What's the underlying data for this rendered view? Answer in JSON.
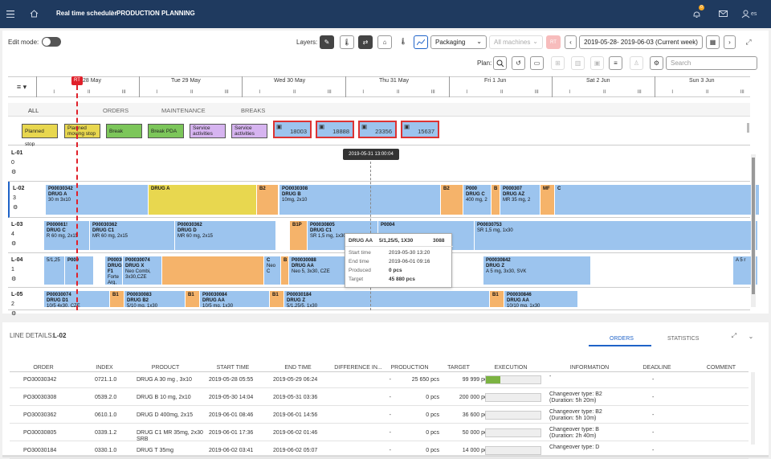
{
  "header": {
    "title": "Real time scheduler",
    "separator": "/",
    "section": "PRODUCTION PLANNING",
    "notif_count": "0",
    "lang": "es"
  },
  "toolbar": {
    "edit_mode": "Edit mode:",
    "layers": "Layers:",
    "layer_select": "Packaging",
    "machine_select": "All machines",
    "rt": "RT",
    "date_range": "2019-05-28- 2019-06-03 (Current week)",
    "plan": "Plan:",
    "search_placeholder": "Search"
  },
  "timeline": {
    "days": [
      "28 May",
      "Tue 29 May",
      "Wed 30 May",
      "Thu 31 May",
      "Fri 1 Jun",
      "Sat 2 Jun",
      "Sun 3 Jun"
    ],
    "tick_labels": [
      "I",
      "II",
      "III"
    ],
    "rt_marker": "RT"
  },
  "tabs": [
    "ALL",
    "ORDERS",
    "MAINTENANCE",
    "BREAKS"
  ],
  "legend": {
    "items": [
      {
        "label": "Planned stop",
        "color": "#e8d74f"
      },
      {
        "label": "Planned moving stop",
        "color": "#e8d74f"
      },
      {
        "label": "Break",
        "color": "#7cc65a"
      },
      {
        "label": "Break PDA",
        "color": "#7cc65a"
      },
      {
        "label": "Service activities",
        "color": "#d6b4f0"
      },
      {
        "label": "Service activities",
        "color": "#d6b4f0"
      }
    ],
    "numbered": [
      "18003",
      "18888",
      "23356",
      "15637"
    ]
  },
  "cursor_time": "2019-05-31 13:00:04",
  "lines": [
    {
      "id": "L-01",
      "count": "0"
    },
    {
      "id": "L-02",
      "count": "3",
      "bars": [
        {
          "t": "b",
          "l": "P00030342",
          "s": "DRUG A",
          "d": "30 m    3x10"
        },
        {
          "t": "y",
          "l": "DRUG A",
          "s": "",
          "d": ""
        },
        {
          "t": "o",
          "l": "B2",
          "s": "",
          "d": ""
        },
        {
          "t": "b",
          "l": "PO0030308",
          "s": "DRUG B",
          "d": "10mg, 2x10"
        },
        {
          "t": "o",
          "l": "B2",
          "s": "",
          "d": ""
        },
        {
          "t": "b",
          "l": "P000",
          "s": "DRUG C",
          "d": "400 mg, 2"
        },
        {
          "t": "o",
          "l": "B",
          "s": "",
          "d": ""
        },
        {
          "t": "b",
          "l": "P000307",
          "s": "DRUG AZ",
          "d": "MR 35 mg, 2"
        },
        {
          "t": "o",
          "l": "MF",
          "s": "",
          "d": ""
        },
        {
          "t": "b",
          "l": "C",
          "s": "",
          "d": ""
        }
      ]
    },
    {
      "id": "L-03",
      "count": "4",
      "bars": [
        {
          "t": "b",
          "l": "P000061!",
          "s": "DRUG C",
          "d": "R 60 mg, 2x15"
        },
        {
          "t": "b",
          "l": "P00030362",
          "s": "DRUG C1",
          "d": "MR 60 mg, 2x15"
        },
        {
          "t": "b",
          "l": "P00030362",
          "s": "DRUG D",
          "d": "MR 60 mg, 2x15"
        },
        {
          "t": "o",
          "l": "B1P",
          "s": "",
          "d": ""
        },
        {
          "t": "b",
          "l": "P00030805",
          "s": "DRUG C1",
          "d": "SR 1,5 mg, 1x30, LD"
        },
        {
          "t": "b",
          "l": "P0004",
          "s": "",
          "d": ""
        },
        {
          "t": "b",
          "l": "P00030753",
          "s": "",
          "d": "SR 1,5 mg, 1x30"
        }
      ]
    },
    {
      "id": "L-04",
      "count": "1",
      "bars": [
        {
          "t": "b",
          "l": "",
          "s": "",
          "d": "5/1,25"
        },
        {
          "t": "b",
          "l": "P000",
          "s": "",
          "d": ""
        },
        {
          "t": "b",
          "l": "P00030831",
          "s": "DRUG F1",
          "d": "Forte Arg, 3x30"
        },
        {
          "t": "b",
          "l": "P00030074",
          "s": "DRUG X",
          "d": "Neo Combi, 3x30,CZE"
        },
        {
          "t": "o",
          "l": "",
          "s": "",
          "d": ""
        },
        {
          "t": "b",
          "l": "C",
          "s": "",
          "d": "Neo C"
        },
        {
          "t": "o",
          "l": "B",
          "s": "",
          "d": ""
        },
        {
          "t": "b",
          "l": "P00030088",
          "s": "DRUG AA",
          "d": "Neo 5, 3x30, CZE"
        },
        {
          "t": "b",
          "l": "P00030842",
          "s": "DRUG Z",
          "d": "A 5 mg, 3x30, SVK"
        },
        {
          "t": "b",
          "l": "",
          "s": "",
          "d": "A 5 r"
        }
      ]
    },
    {
      "id": "L-05",
      "count": "2",
      "bars": [
        {
          "t": "b",
          "l": "P00030074",
          "s": "DRUG D1",
          "d": "10/5 4x30, CZE"
        },
        {
          "t": "o",
          "l": "B1",
          "s": "",
          "d": ""
        },
        {
          "t": "b",
          "l": "P00030083",
          "s": "DRUG B2",
          "d": "5/10 mg, 1x30"
        },
        {
          "t": "o",
          "l": "B1",
          "s": "",
          "d": ""
        },
        {
          "t": "b",
          "l": "P00030084",
          "s": "DRUG AA",
          "d": "10/5 mg, 1x30"
        },
        {
          "t": "o",
          "l": "B1",
          "s": "",
          "d": ""
        },
        {
          "t": "b",
          "l": "P00030184",
          "s": "DRUG Z",
          "d": "5/1,25/5, 1x30"
        },
        {
          "t": "o",
          "l": "B1",
          "s": "",
          "d": ""
        },
        {
          "t": "b",
          "l": "P00030846",
          "s": "DRUG AA",
          "d": "10/10 mg, 1x30"
        }
      ]
    }
  ],
  "tooltip": {
    "name": "DRUG AA",
    "spec": "5/1,25/5, 1X30",
    "code": "3088",
    "rows": [
      [
        "Start time",
        "2019-05-30 13:20"
      ],
      [
        "End time",
        "2019-06-01 09:16"
      ],
      [
        "Produced",
        "0 pcs"
      ],
      [
        "Target",
        "45 880 pcs"
      ]
    ]
  },
  "details": {
    "title": "LINE DETAILS:",
    "line": "L-02",
    "tab_orders": "ORDERS",
    "tab_stats": "STATISTICS",
    "columns": [
      "ORDER",
      "INDEX",
      "PRODUCT",
      "START TIME",
      "END TIME",
      "DIFFERENCE IN...",
      "PRODUCTION",
      "TARGET",
      "EXECUTION",
      "INFORMATION",
      "DEADLINE",
      "COMMENT"
    ],
    "rows": [
      {
        "order": "PO30030342",
        "index": "0721.1.0",
        "product": "DRUG A 30 mg , 3x10",
        "start": "2019-05-28 05:55",
        "end": "2019-05-29 06:24",
        "diff": "-",
        "prod": "25 650 pcs",
        "target": "99 999 pcs",
        "exec": 0.26,
        "info": "-",
        "deadline": "-"
      },
      {
        "order": "PO30030308",
        "index": "0539.2.0",
        "product": "DRUG B 10 mg, 2x10",
        "start": "2019-05-30 14:04",
        "end": "2019-05-31 03:36",
        "diff": "-",
        "prod": "0 pcs",
        "target": "200 000 pcs",
        "exec": 0,
        "info": "Changeover type: B2 (Duration: 5h 20m)",
        "deadline": "-"
      },
      {
        "order": "PO30030362",
        "index": "0610.1.0",
        "product": "DRUG D 400mg, 2x15",
        "start": "2019-06-01 08:46",
        "end": "2019-06-01 14:56",
        "diff": "-",
        "prod": "0 pcs",
        "target": "36 600 pcs",
        "exec": 0,
        "info": "Changeover type: B2 (Duration: 5h 10m)",
        "deadline": "-"
      },
      {
        "order": "PO30030805",
        "index": "0339.1.2",
        "product": "DRUG C1 MR 35mg, 2x30 SRB",
        "start": "2019-06-01 17:36",
        "end": "2019-06-02 01:46",
        "diff": "-",
        "prod": "0 pcs",
        "target": "50 000 pcs",
        "exec": 0,
        "info": "Changeover type: B (Duration: 2h 40m)",
        "deadline": "-"
      },
      {
        "order": "PO30030184",
        "index": "0330.1.0",
        "product": "DRUG T 35mg",
        "start": "2019-06-02 03:41",
        "end": "2019-06-02 05:07",
        "diff": "-",
        "prod": "0 pcs",
        "target": "14 000 pcs",
        "exec": 0,
        "info": "Changeover type: D",
        "deadline": "-"
      }
    ]
  }
}
